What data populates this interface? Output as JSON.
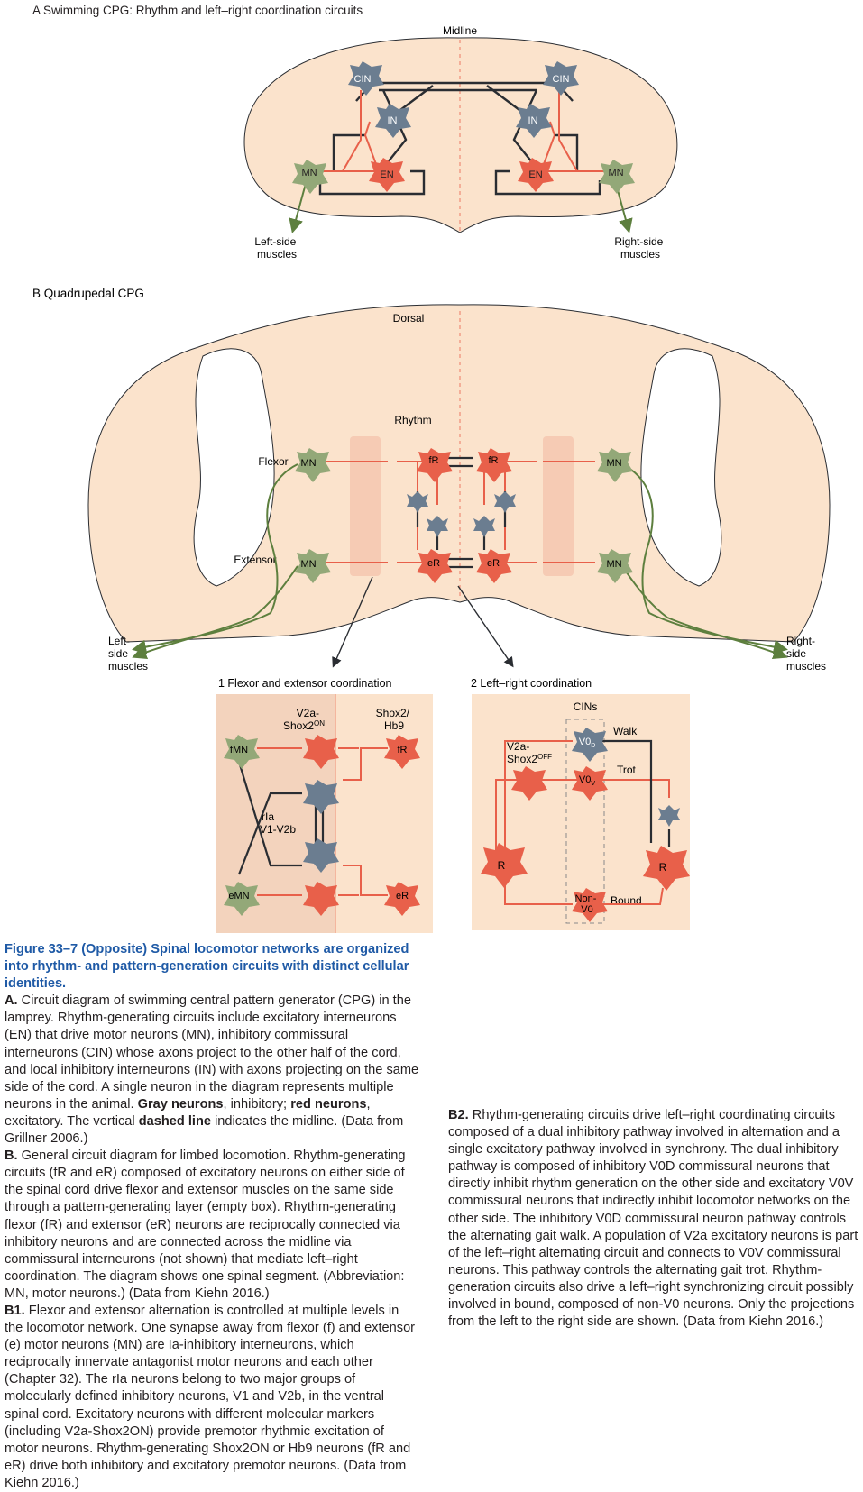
{
  "panelA": {
    "title": "A Swimming CPG: Rhythm and left–right coordination circuits",
    "midline": "Midline",
    "cin": "CIN",
    "in": "IN",
    "en": "EN",
    "mn": "MN",
    "left_muscles": [
      "Left-side",
      "muscles"
    ],
    "right_muscles": [
      "Right-side",
      "muscles"
    ]
  },
  "panelB": {
    "title": "B Quadrupedal CPG",
    "dorsal": "Dorsal",
    "rhythm": "Rhythm",
    "flexor": "Flexor",
    "extensor": "Extensor",
    "mn": "MN",
    "fr": "fR",
    "er": "eR",
    "left_muscles": [
      "Left-",
      "side",
      "muscles"
    ],
    "right_muscles": [
      "Right-",
      "side",
      "muscles"
    ]
  },
  "panelB1": {
    "title": "1 Flexor and extensor coordination",
    "v2a": [
      "V2a-",
      "Shox2"
    ],
    "v2a_sup": "ON",
    "shox2": [
      "Shox2/",
      "Hb9"
    ],
    "fmn": "fMN",
    "emn": "eMN",
    "fr": "fR",
    "er": "eR",
    "ria": [
      "rIa",
      "V1-V2b"
    ]
  },
  "panelB2": {
    "title": "2 Left–right coordination",
    "cins": "CINs",
    "walk": "Walk",
    "trot": "Trot",
    "bound": "Bound",
    "v2a": [
      "V2a-",
      "Shox2"
    ],
    "v2a_sup": "OFF",
    "v0": "V0",
    "v0d_sub": "D",
    "v0v_sub": "V",
    "non_v0": [
      "Non-",
      "V0"
    ],
    "r": "R"
  },
  "caption": {
    "figure_label": "Figure 33–7",
    "figure_title": "(Opposite) Spinal locomotor networks are organized into rhythm- and pattern-generation circuits with distinct cellular identities.",
    "a_label": "A.",
    "a_text": "Circuit diagram of swimming central pattern generator (CPG) in the lamprey. Rhythm-generating circuits include excitatory interneurons (EN) that drive motor neurons (MN), inhibitory commissural interneurons (CIN) whose axons project to the other half of the cord, and local inhibitory interneurons (IN) with axons projecting on the same side of the cord. A single neuron in the diagram represents multiple neurons in the animal.",
    "a_gray": "Gray neurons",
    "a_gray_rest": ", inhibitory;",
    "a_red": "red neurons",
    "a_red_rest": ", excitatory. The vertical",
    "a_dashed": "dashed line",
    "a_dashed_rest": "indicates the midline. (Data from Grillner 2006.)",
    "b_label": "B.",
    "b_text": "General circuit diagram for limbed locomotion. Rhythm-generating circuits (fR and eR) composed of excitatory neurons on either side of the spinal cord drive flexor and extensor muscles on the same side through a pattern-generating layer (empty box). Rhythm-generating flexor (fR) and extensor (eR) neurons are reciprocally connected via inhibitory neurons and are connected across the midline via commissural interneurons (not shown) that mediate left–right coordination. The diagram shows one spinal segment. (Abbreviation: MN, motor neurons.) (Data from Kiehn 2016.)",
    "b1_label": "B1.",
    "b1_text": "Flexor and extensor alternation is controlled at multiple levels in the locomotor network. One synapse away from flexor (f) and extensor (e) motor neurons (MN) are Ia-inhibitory interneurons, which reciprocally innervate antagonist motor neurons and each other (Chapter 32). The rIa neurons belong to two major groups of molecularly defined inhibitory neurons, V1 and V2b, in the ventral spinal cord. Excitatory neurons with different molecular markers (including V2a-Shox2ON) provide premotor rhythmic excitation of motor neurons. Rhythm-generating Shox2ON or Hb9 neurons (fR and eR) drive both inhibitory and excitatory premotor neurons. (Data from Kiehn 2016.)",
    "b2_label": "B2.",
    "b2_text": "Rhythm-generating circuits drive left–right coordinating circuits composed of a dual inhibitory pathway involved in alternation and a single excitatory pathway involved in synchrony. The dual inhibitory pathway is composed of inhibitory V0D commissural neurons that directly inhibit rhythm generation on the other side and excitatory V0V commissural neurons that indirectly inhibit locomotor networks on the other side. The inhibitory V0D commissural neuron pathway controls the alternating gait walk. A population of V2a excitatory neurons is part of the left–right alternating circuit and connects to V0V commissural neurons. This pathway controls the alternating gait trot. Rhythm-generation circuits also drive a left–right synchronizing circuit possibly involved in bound, composed of non-V0 neurons. Only the projections from the left to the right side are shown. (Data from Kiehn 2016.)"
  },
  "colors": {
    "tissue": "#fbe3cc",
    "pattern_box": "#f6cbb4",
    "excitatory": "#e8604a",
    "inhibitory": "#6b7d90",
    "motor": "#93a878",
    "motor_axon": "#5d7f3e",
    "wire": "#2a2d32",
    "title_blue": "#1f5aa6"
  }
}
